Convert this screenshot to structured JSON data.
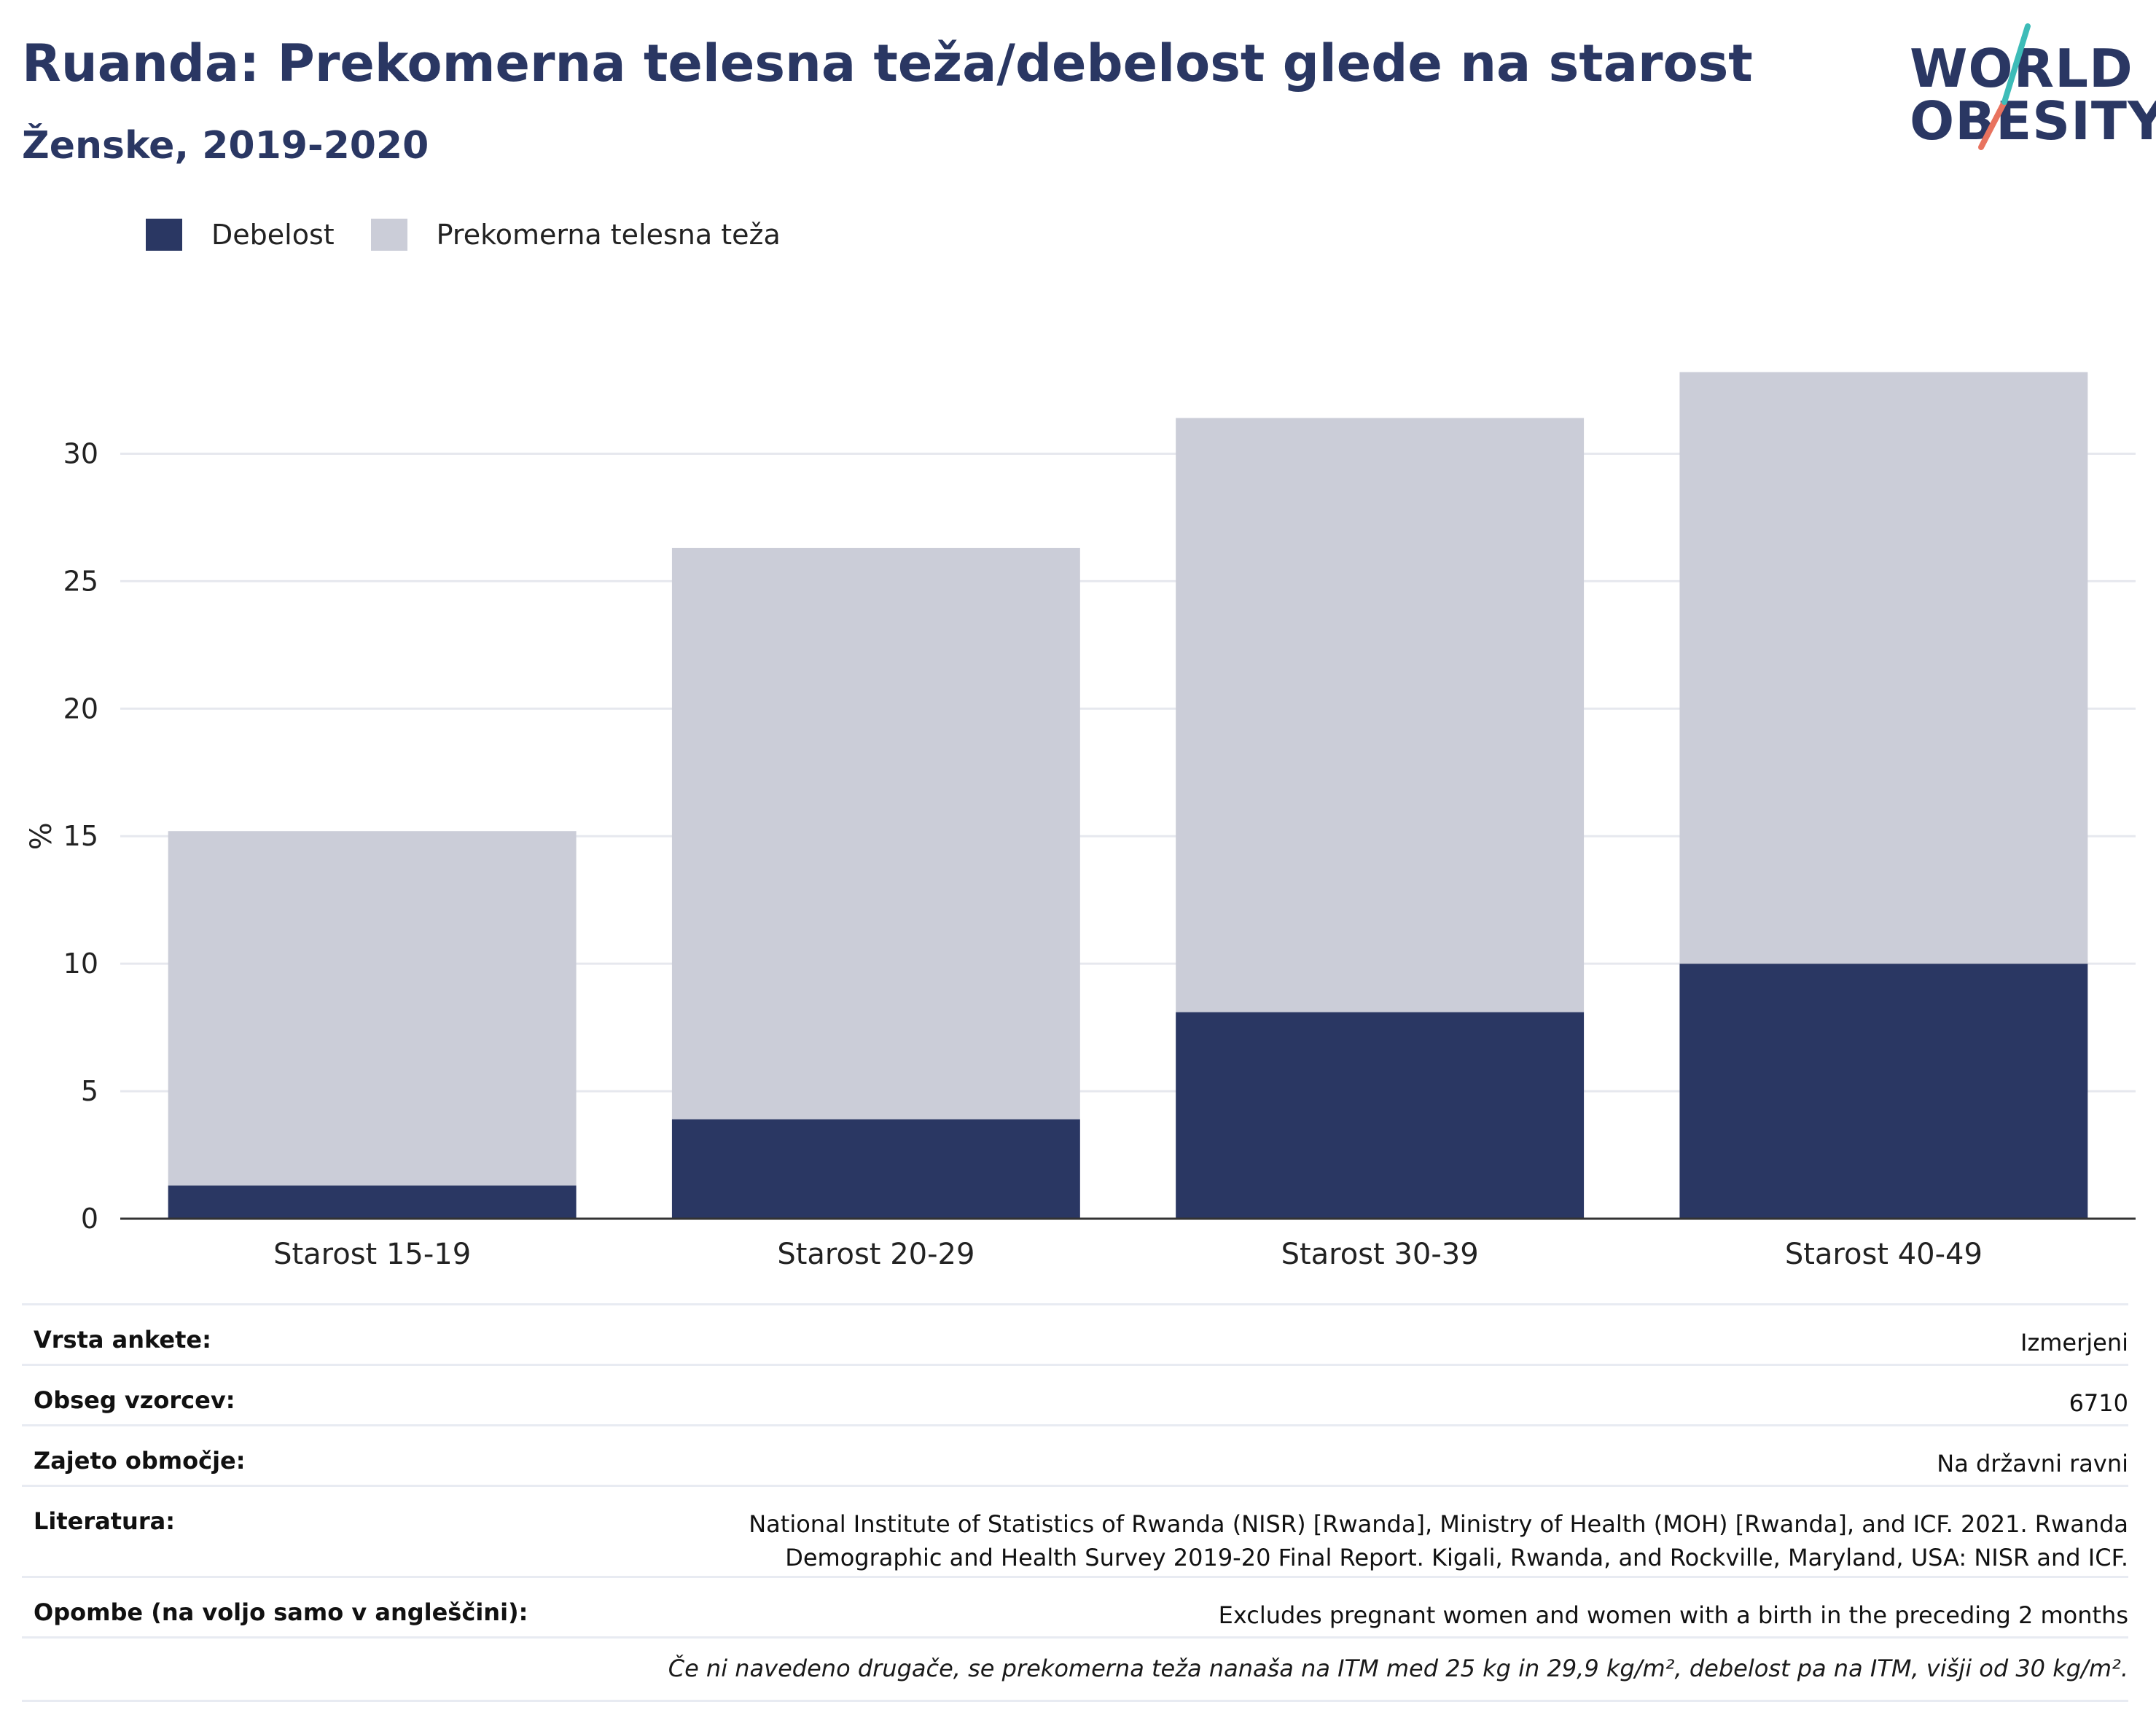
{
  "header": {
    "title": "Ruanda: Prekomerna telesna teža/debelost glede na starost",
    "subtitle": "Ženske, 2019-2020"
  },
  "logo": {
    "line1": "WORLD",
    "line2": "OBESITY"
  },
  "legend": [
    {
      "label": "Debelost",
      "color": "#2a3763"
    },
    {
      "label": "Prekomerna telesna teža",
      "color": "#cbcdd8"
    }
  ],
  "chart_data": {
    "type": "bar",
    "stacked": true,
    "categories": [
      "Starost 15-19",
      "Starost 20-29",
      "Starost 30-39",
      "Starost 40-49"
    ],
    "series": [
      {
        "name": "Debelost",
        "color": "#2a3763",
        "values": [
          1.3,
          3.9,
          8.1,
          10.0
        ]
      },
      {
        "name": "Prekomerna telesna teža",
        "color": "#cbcdd8",
        "values": [
          13.9,
          22.4,
          23.3,
          23.2
        ]
      }
    ],
    "ylabel": "%",
    "ylim": [
      0,
      33.5
    ],
    "yticks": [
      0,
      5,
      10,
      15,
      20,
      25,
      30
    ],
    "grid": true
  },
  "meta": {
    "rows": [
      {
        "label": "Vrsta ankete:",
        "value": "Izmerjeni"
      },
      {
        "label": "Obseg vzorcev:",
        "value": "6710"
      },
      {
        "label": "Zajeto območje:",
        "value": "Na državni ravni"
      },
      {
        "label": "Literatura:",
        "value": "National Institute of Statistics of Rwanda (NISR) [Rwanda], Ministry of Health (MOH) [Rwanda], and ICF. 2021. Rwanda Demographic and Health Survey 2019-20 Final Report. Kigali, Rwanda, and Rockville, Maryland, USA: NISR and ICF."
      },
      {
        "label": "Opombe (na voljo samo v angleščini):",
        "value": "Excludes pregnant women and women with a birth in the preceding 2 months"
      }
    ],
    "footnote": "Če ni navedeno drugače, se prekomerna teža nanaša na ITM med 25 kg in 29,9 kg/m², debelost pa na ITM, višji od 30 kg/m²."
  }
}
